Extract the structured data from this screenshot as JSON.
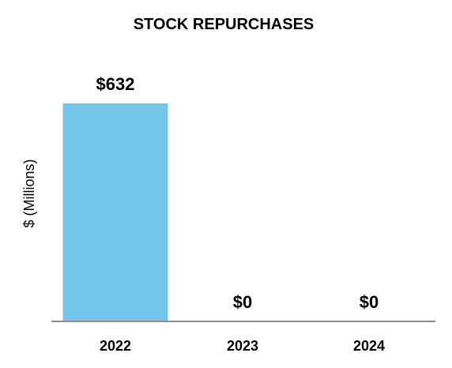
{
  "chart_data": {
    "type": "bar",
    "title": "STOCK REPURCHASES",
    "xlabel": "",
    "ylabel": "$ (Millions)",
    "categories": [
      "2022",
      "2023",
      "2024"
    ],
    "values": [
      632,
      0,
      0
    ],
    "data_labels": [
      "$632",
      "$0",
      "$0"
    ],
    "ylim": [
      0,
      632
    ],
    "grid": false,
    "legend": "none",
    "colors": {
      "bar": "#73c6e7",
      "axis": "#8c8c8c",
      "text": "#000000"
    }
  }
}
